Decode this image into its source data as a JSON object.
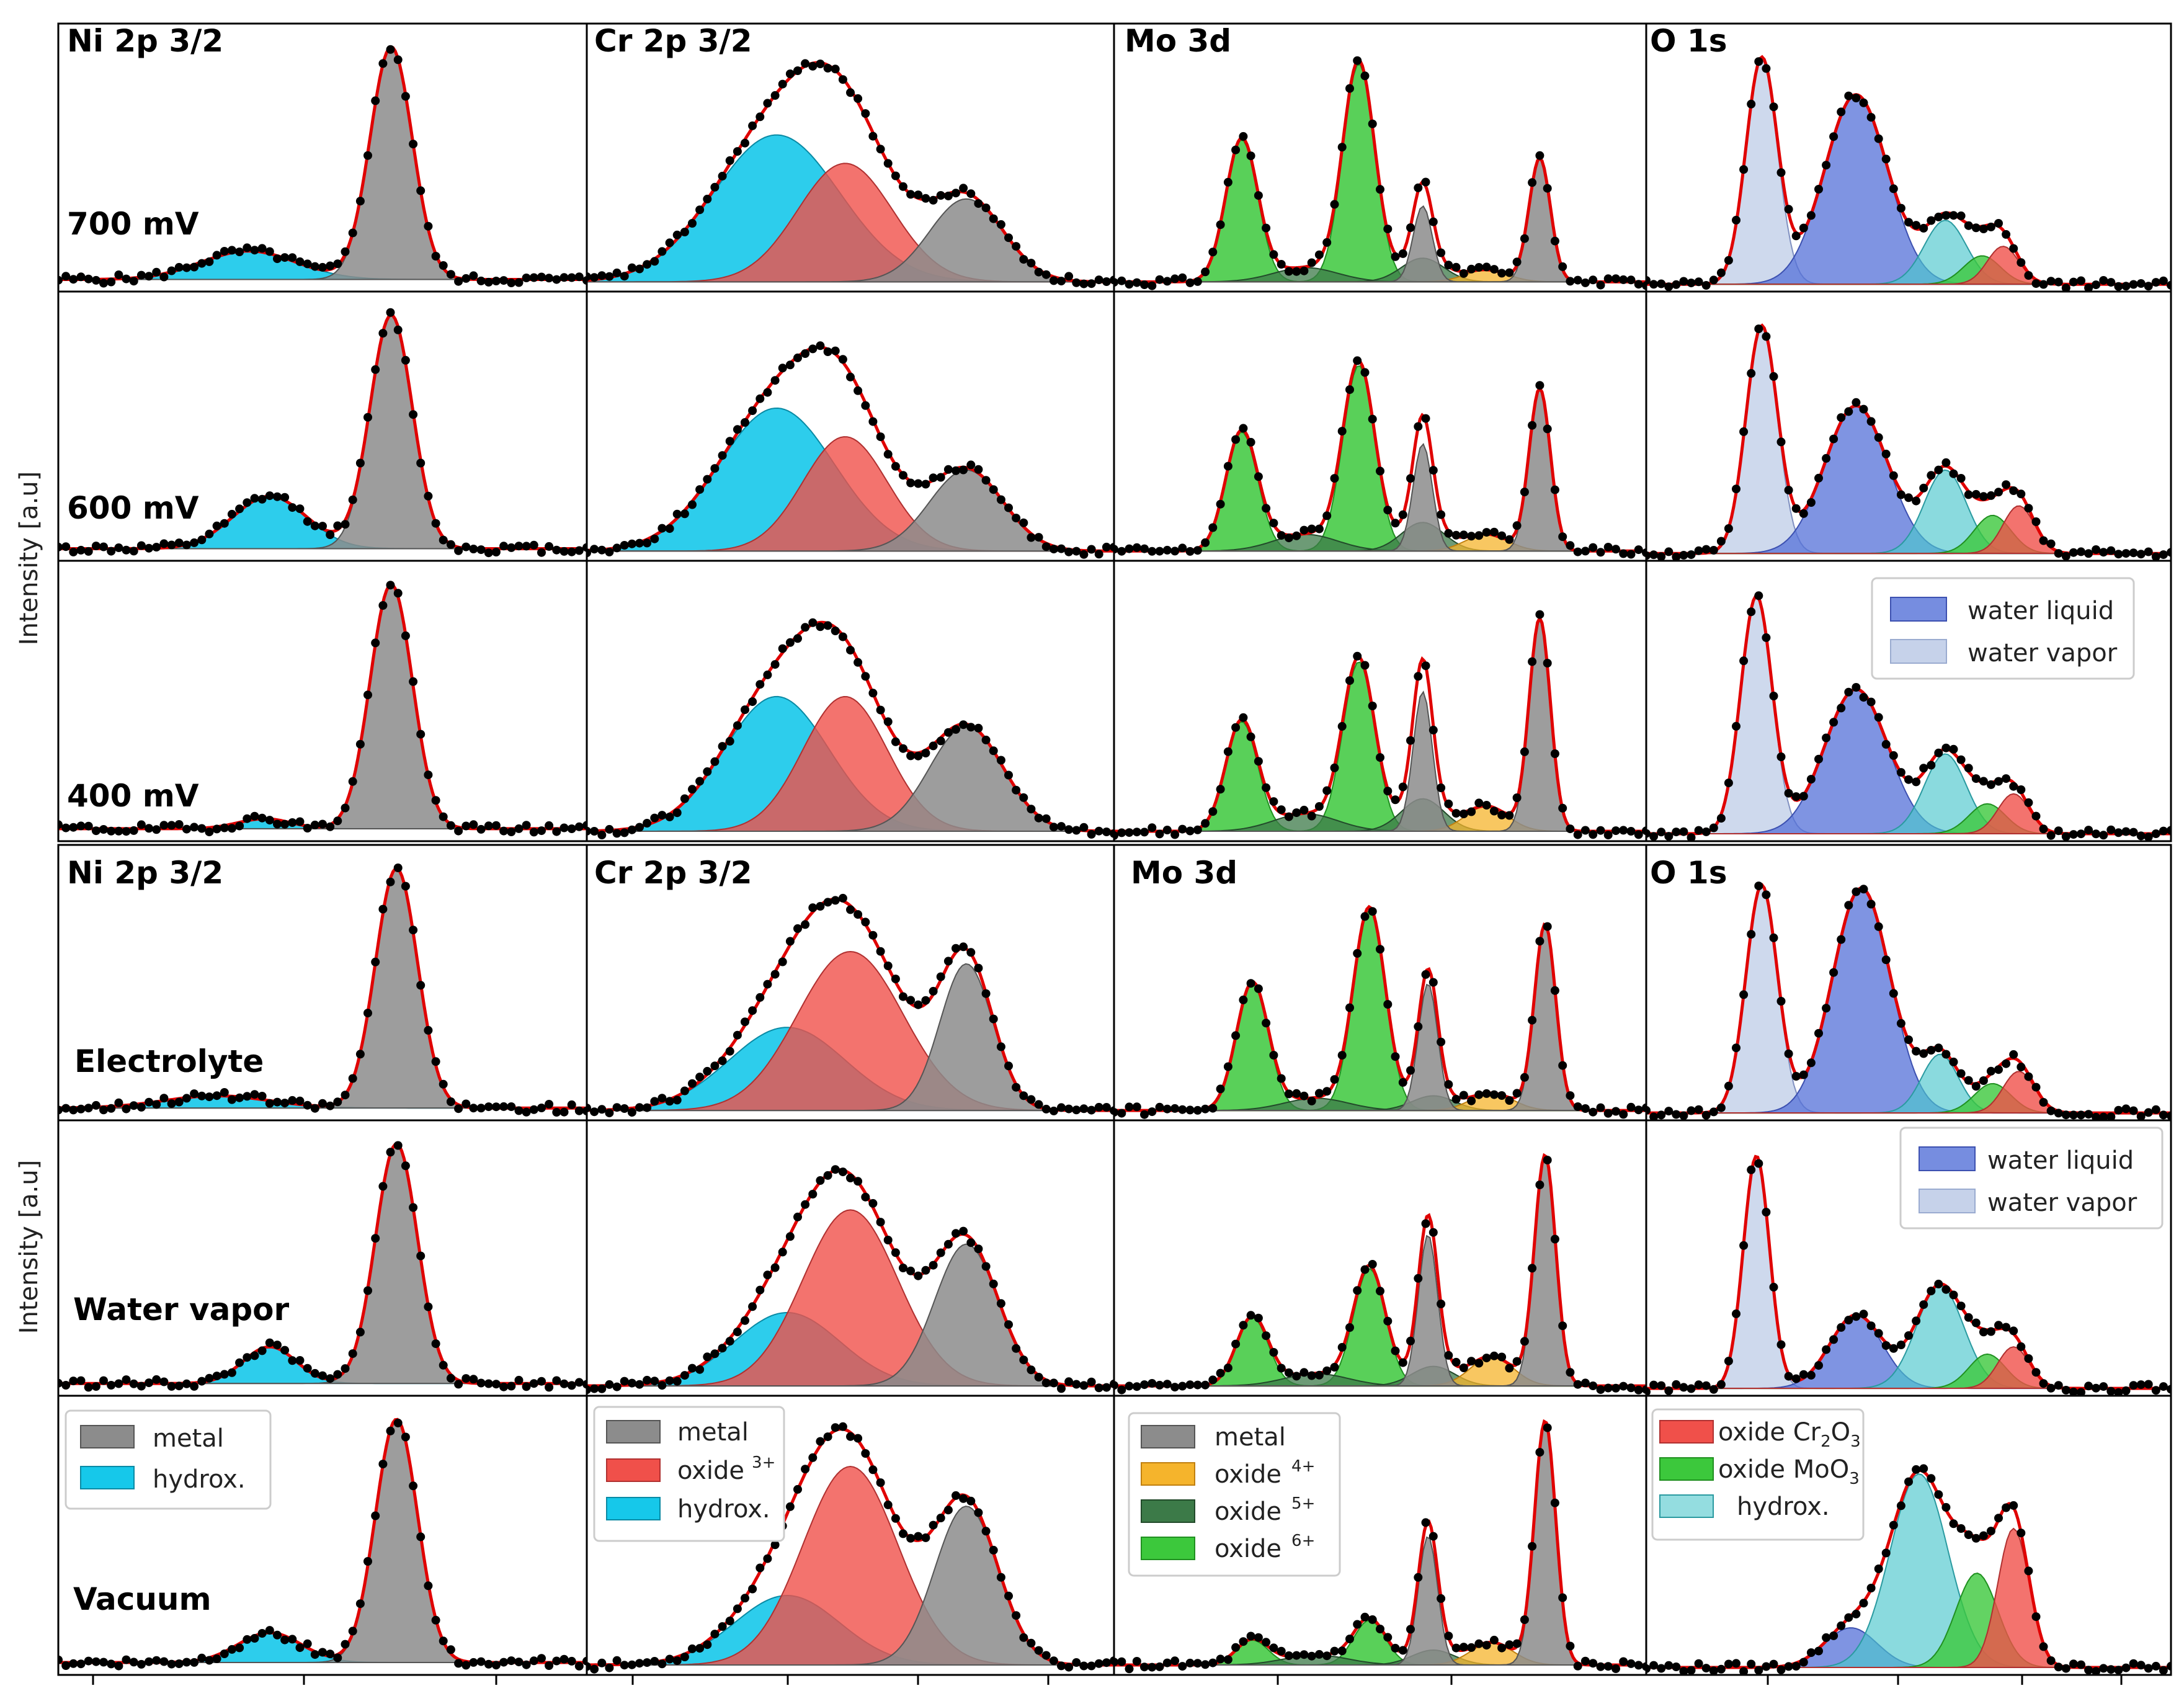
{
  "chart_data": {
    "type": "area",
    "description_layout": "XPS spectra grid: 2 blocks x 3 rows x 4 columns",
    "ylabel": "Intensity [a.u]",
    "columns": [
      "Ni 2p 3/2",
      "Cr 2p 3/2",
      "Mo 3d",
      "O 1s"
    ],
    "block_rows": [
      [
        "700 mV",
        "600 mV",
        "400 mV"
      ],
      [
        "Electrolyte",
        "Water vapor",
        "Vacuum"
      ]
    ],
    "colors": {
      "metal": "#8c8c8c",
      "hydroxide": "#16c8ea",
      "oxide3": "#f0504a",
      "oxide4": "#f5b42c",
      "oxide5": "#3c7a48",
      "oxide6": "#3cc83c",
      "water_liquid": "#5470d8",
      "water_vapor": "#c6d2ea",
      "o_hydrox": "#4cc6cc",
      "o_cr2o3": "#f0504a",
      "o_moo3": "#3cc83c",
      "fit": "#e00000",
      "data": "#000000"
    },
    "legends": {
      "ni": [
        {
          "label": "metal",
          "color": "#8c8c8c"
        },
        {
          "label": "hydrox.",
          "color": "#16c8ea"
        }
      ],
      "cr": [
        {
          "label": "metal",
          "color": "#8c8c8c"
        },
        {
          "label": "oxide",
          "sup": "3+",
          "color": "#f0504a"
        },
        {
          "label": "hydrox.",
          "color": "#16c8ea"
        }
      ],
      "mo": [
        {
          "label": "metal",
          "color": "#8c8c8c"
        },
        {
          "label": "oxide",
          "sup": "4+",
          "color": "#f5b42c"
        },
        {
          "label": "oxide",
          "sup": "5+",
          "color": "#3c7a48"
        },
        {
          "label": "oxide",
          "sup": "6+",
          "color": "#3cc83c"
        }
      ],
      "o": [
        {
          "label": "oxide Cr",
          "sub": "2",
          "after": "O",
          "sub2": "3",
          "color": "#f0504a"
        },
        {
          "label": "oxide MoO",
          "sub": "3",
          "color": "#3cc83c"
        },
        {
          "label": "hydrox.",
          "color": "#4cc6cc"
        }
      ],
      "water": [
        {
          "label": "water liquid",
          "color": "#5470d8"
        },
        {
          "label": "water vapor",
          "color": "#c6d2ea"
        }
      ]
    },
    "panels": {
      "ni": [
        {
          "row": "700 mV",
          "components": [
            {
              "name": "hydroxide",
              "center": 0.36,
              "width": 0.09,
              "amp": 0.12
            },
            {
              "name": "metal",
              "center": 0.63,
              "width": 0.04,
              "amp": 0.98
            }
          ]
        },
        {
          "row": "600 mV",
          "components": [
            {
              "name": "hydroxide",
              "center": 0.4,
              "width": 0.07,
              "amp": 0.22
            },
            {
              "name": "metal",
              "center": 0.63,
              "width": 0.04,
              "amp": 0.98
            }
          ]
        },
        {
          "row": "400 mV",
          "components": [
            {
              "name": "hydroxide",
              "center": 0.39,
              "width": 0.05,
              "amp": 0.04
            },
            {
              "name": "metal",
              "center": 0.63,
              "width": 0.04,
              "amp": 0.98
            }
          ]
        },
        {
          "row": "Electrolyte",
          "components": [
            {
              "name": "hydroxide",
              "center": 0.3,
              "width": 0.1,
              "amp": 0.05
            },
            {
              "name": "metal",
              "center": 0.64,
              "width": 0.04,
              "amp": 0.98
            }
          ]
        },
        {
          "row": "Water vapor",
          "components": [
            {
              "name": "hydroxide",
              "center": 0.4,
              "width": 0.05,
              "amp": 0.15
            },
            {
              "name": "metal",
              "center": 0.64,
              "width": 0.04,
              "amp": 0.98
            }
          ]
        },
        {
          "row": "Vacuum",
          "components": [
            {
              "name": "hydroxide",
              "center": 0.4,
              "width": 0.06,
              "amp": 0.12
            },
            {
              "name": "metal",
              "center": 0.64,
              "width": 0.04,
              "amp": 0.98
            }
          ]
        }
      ],
      "cr": [
        {
          "row": "700 mV",
          "components": [
            {
              "name": "hydroxide",
              "center": 0.36,
              "width": 0.12,
              "amp": 0.62
            },
            {
              "name": "oxide3",
              "center": 0.49,
              "width": 0.09,
              "amp": 0.5
            },
            {
              "name": "metal",
              "center": 0.72,
              "width": 0.07,
              "amp": 0.35
            }
          ]
        },
        {
          "row": "600 mV",
          "components": [
            {
              "name": "hydroxide",
              "center": 0.36,
              "width": 0.11,
              "amp": 0.6
            },
            {
              "name": "oxide3",
              "center": 0.49,
              "width": 0.08,
              "amp": 0.48
            },
            {
              "name": "metal",
              "center": 0.72,
              "width": 0.07,
              "amp": 0.34
            }
          ]
        },
        {
          "row": "400 mV",
          "components": [
            {
              "name": "hydroxide",
              "center": 0.36,
              "width": 0.1,
              "amp": 0.54
            },
            {
              "name": "oxide3",
              "center": 0.49,
              "width": 0.08,
              "amp": 0.54
            },
            {
              "name": "metal",
              "center": 0.72,
              "width": 0.07,
              "amp": 0.42
            }
          ]
        },
        {
          "row": "Electrolyte",
          "components": [
            {
              "name": "hydroxide",
              "center": 0.38,
              "width": 0.11,
              "amp": 0.34
            },
            {
              "name": "oxide3",
              "center": 0.5,
              "width": 0.1,
              "amp": 0.65
            },
            {
              "name": "metal",
              "center": 0.72,
              "width": 0.05,
              "amp": 0.6
            }
          ]
        },
        {
          "row": "Water vapor",
          "components": [
            {
              "name": "hydroxide",
              "center": 0.38,
              "width": 0.1,
              "amp": 0.3
            },
            {
              "name": "oxide3",
              "center": 0.5,
              "width": 0.09,
              "amp": 0.72
            },
            {
              "name": "metal",
              "center": 0.72,
              "width": 0.06,
              "amp": 0.58
            }
          ]
        },
        {
          "row": "Vacuum",
          "components": [
            {
              "name": "hydroxide",
              "center": 0.38,
              "width": 0.1,
              "amp": 0.28
            },
            {
              "name": "oxide3",
              "center": 0.5,
              "width": 0.09,
              "amp": 0.8
            },
            {
              "name": "metal",
              "center": 0.72,
              "width": 0.06,
              "amp": 0.64
            }
          ]
        }
      ],
      "mo": [
        {
          "row": "700 mV",
          "components": [
            {
              "name": "oxide6",
              "center": 0.24,
              "width": 0.03,
              "amp": 0.6
            },
            {
              "name": "oxide6",
              "center": 0.46,
              "width": 0.03,
              "amp": 0.92
            },
            {
              "name": "oxide5",
              "center": 0.36,
              "width": 0.06,
              "amp": 0.06
            },
            {
              "name": "oxide5",
              "center": 0.58,
              "width": 0.04,
              "amp": 0.1
            },
            {
              "name": "oxide4",
              "center": 0.7,
              "width": 0.04,
              "amp": 0.05
            },
            {
              "name": "metal",
              "center": 0.58,
              "width": 0.018,
              "amp": 0.32
            },
            {
              "name": "metal",
              "center": 0.8,
              "width": 0.02,
              "amp": 0.52
            }
          ]
        },
        {
          "row": "600 mV",
          "components": [
            {
              "name": "oxide6",
              "center": 0.24,
              "width": 0.03,
              "amp": 0.5
            },
            {
              "name": "oxide6",
              "center": 0.46,
              "width": 0.03,
              "amp": 0.78
            },
            {
              "name": "oxide5",
              "center": 0.36,
              "width": 0.06,
              "amp": 0.07
            },
            {
              "name": "oxide5",
              "center": 0.58,
              "width": 0.04,
              "amp": 0.12
            },
            {
              "name": "oxide4",
              "center": 0.7,
              "width": 0.04,
              "amp": 0.07
            },
            {
              "name": "metal",
              "center": 0.58,
              "width": 0.018,
              "amp": 0.45
            },
            {
              "name": "metal",
              "center": 0.8,
              "width": 0.02,
              "amp": 0.68
            }
          ]
        },
        {
          "row": "400 mV",
          "components": [
            {
              "name": "oxide6",
              "center": 0.24,
              "width": 0.03,
              "amp": 0.44
            },
            {
              "name": "oxide6",
              "center": 0.46,
              "width": 0.03,
              "amp": 0.68
            },
            {
              "name": "oxide5",
              "center": 0.36,
              "width": 0.06,
              "amp": 0.07
            },
            {
              "name": "oxide5",
              "center": 0.58,
              "width": 0.04,
              "amp": 0.13
            },
            {
              "name": "oxide4",
              "center": 0.7,
              "width": 0.04,
              "amp": 0.1
            },
            {
              "name": "metal",
              "center": 0.58,
              "width": 0.018,
              "amp": 0.56
            },
            {
              "name": "metal",
              "center": 0.8,
              "width": 0.02,
              "amp": 0.85
            }
          ]
        },
        {
          "row": "Electrolyte",
          "components": [
            {
              "name": "oxide6",
              "center": 0.26,
              "width": 0.03,
              "amp": 0.52
            },
            {
              "name": "oxide6",
              "center": 0.48,
              "width": 0.03,
              "amp": 0.82
            },
            {
              "name": "oxide5",
              "center": 0.38,
              "width": 0.06,
              "amp": 0.05
            },
            {
              "name": "oxide5",
              "center": 0.6,
              "width": 0.04,
              "amp": 0.06
            },
            {
              "name": "oxide4",
              "center": 0.71,
              "width": 0.04,
              "amp": 0.07
            },
            {
              "name": "metal",
              "center": 0.59,
              "width": 0.018,
              "amp": 0.52
            },
            {
              "name": "metal",
              "center": 0.81,
              "width": 0.02,
              "amp": 0.76
            }
          ]
        },
        {
          "row": "Water vapor",
          "components": [
            {
              "name": "oxide6",
              "center": 0.26,
              "width": 0.03,
              "amp": 0.28
            },
            {
              "name": "oxide6",
              "center": 0.48,
              "width": 0.03,
              "amp": 0.48
            },
            {
              "name": "oxide5",
              "center": 0.38,
              "width": 0.06,
              "amp": 0.05
            },
            {
              "name": "oxide5",
              "center": 0.6,
              "width": 0.04,
              "amp": 0.08
            },
            {
              "name": "oxide4",
              "center": 0.71,
              "width": 0.04,
              "amp": 0.12
            },
            {
              "name": "metal",
              "center": 0.59,
              "width": 0.018,
              "amp": 0.62
            },
            {
              "name": "metal",
              "center": 0.81,
              "width": 0.02,
              "amp": 0.94
            }
          ]
        },
        {
          "row": "Vacuum",
          "components": [
            {
              "name": "oxide6",
              "center": 0.26,
              "width": 0.03,
              "amp": 0.1
            },
            {
              "name": "oxide6",
              "center": 0.48,
              "width": 0.03,
              "amp": 0.18
            },
            {
              "name": "oxide5",
              "center": 0.38,
              "width": 0.06,
              "amp": 0.04
            },
            {
              "name": "oxide5",
              "center": 0.6,
              "width": 0.04,
              "amp": 0.06
            },
            {
              "name": "oxide4",
              "center": 0.71,
              "width": 0.04,
              "amp": 0.09
            },
            {
              "name": "metal",
              "center": 0.59,
              "width": 0.018,
              "amp": 0.52
            },
            {
              "name": "metal",
              "center": 0.81,
              "width": 0.02,
              "amp": 0.98
            }
          ]
        }
      ],
      "o": [
        {
          "row": "700 mV",
          "components": [
            {
              "name": "water_vapor",
              "center": 0.22,
              "width": 0.03,
              "amp": 0.95
            },
            {
              "name": "water_liquid",
              "center": 0.4,
              "width": 0.06,
              "amp": 0.8
            },
            {
              "name": "o_hydrox",
              "center": 0.57,
              "width": 0.04,
              "amp": 0.27
            },
            {
              "name": "o_moo3",
              "center": 0.64,
              "width": 0.035,
              "amp": 0.12
            },
            {
              "name": "o_cr2o3",
              "center": 0.68,
              "width": 0.03,
              "amp": 0.16
            }
          ]
        },
        {
          "row": "600 mV",
          "components": [
            {
              "name": "water_vapor",
              "center": 0.22,
              "width": 0.03,
              "amp": 0.95
            },
            {
              "name": "water_liquid",
              "center": 0.4,
              "width": 0.06,
              "amp": 0.62
            },
            {
              "name": "o_hydrox",
              "center": 0.57,
              "width": 0.04,
              "amp": 0.35
            },
            {
              "name": "o_moo3",
              "center": 0.66,
              "width": 0.035,
              "amp": 0.16
            },
            {
              "name": "o_cr2o3",
              "center": 0.71,
              "width": 0.03,
              "amp": 0.2
            }
          ]
        },
        {
          "row": "400 mV",
          "components": [
            {
              "name": "water_vapor",
              "center": 0.21,
              "width": 0.03,
              "amp": 0.95
            },
            {
              "name": "water_liquid",
              "center": 0.4,
              "width": 0.06,
              "amp": 0.58
            },
            {
              "name": "o_hydrox",
              "center": 0.57,
              "width": 0.04,
              "amp": 0.32
            },
            {
              "name": "o_moo3",
              "center": 0.65,
              "width": 0.035,
              "amp": 0.12
            },
            {
              "name": "o_cr2o3",
              "center": 0.7,
              "width": 0.03,
              "amp": 0.16
            }
          ]
        },
        {
          "row": "Electrolyte",
          "components": [
            {
              "name": "water_vapor",
              "center": 0.22,
              "width": 0.03,
              "amp": 0.93
            },
            {
              "name": "water_liquid",
              "center": 0.41,
              "width": 0.055,
              "amp": 0.92
            },
            {
              "name": "o_hydrox",
              "center": 0.56,
              "width": 0.035,
              "amp": 0.24
            },
            {
              "name": "o_moo3",
              "center": 0.66,
              "width": 0.035,
              "amp": 0.12
            },
            {
              "name": "o_cr2o3",
              "center": 0.71,
              "width": 0.03,
              "amp": 0.17
            }
          ]
        },
        {
          "row": "Water vapor",
          "components": [
            {
              "name": "water_vapor",
              "center": 0.21,
              "width": 0.025,
              "amp": 0.95
            },
            {
              "name": "water_liquid",
              "center": 0.4,
              "width": 0.05,
              "amp": 0.3
            },
            {
              "name": "o_hydrox",
              "center": 0.56,
              "width": 0.045,
              "amp": 0.42
            },
            {
              "name": "o_moo3",
              "center": 0.65,
              "width": 0.035,
              "amp": 0.14
            },
            {
              "name": "o_cr2o3",
              "center": 0.7,
              "width": 0.03,
              "amp": 0.17
            }
          ]
        },
        {
          "row": "Vacuum",
          "components": [
            {
              "name": "water_liquid",
              "center": 0.39,
              "width": 0.05,
              "amp": 0.16
            },
            {
              "name": "o_hydrox",
              "center": 0.52,
              "width": 0.055,
              "amp": 0.78
            },
            {
              "name": "o_moo3",
              "center": 0.63,
              "width": 0.04,
              "amp": 0.38
            },
            {
              "name": "o_cr2o3",
              "center": 0.7,
              "width": 0.03,
              "amp": 0.56
            }
          ]
        }
      ]
    },
    "baselines": {
      "ni": 0.03,
      "cr": 0.02,
      "mo": 0.02,
      "o": 0.01
    }
  }
}
